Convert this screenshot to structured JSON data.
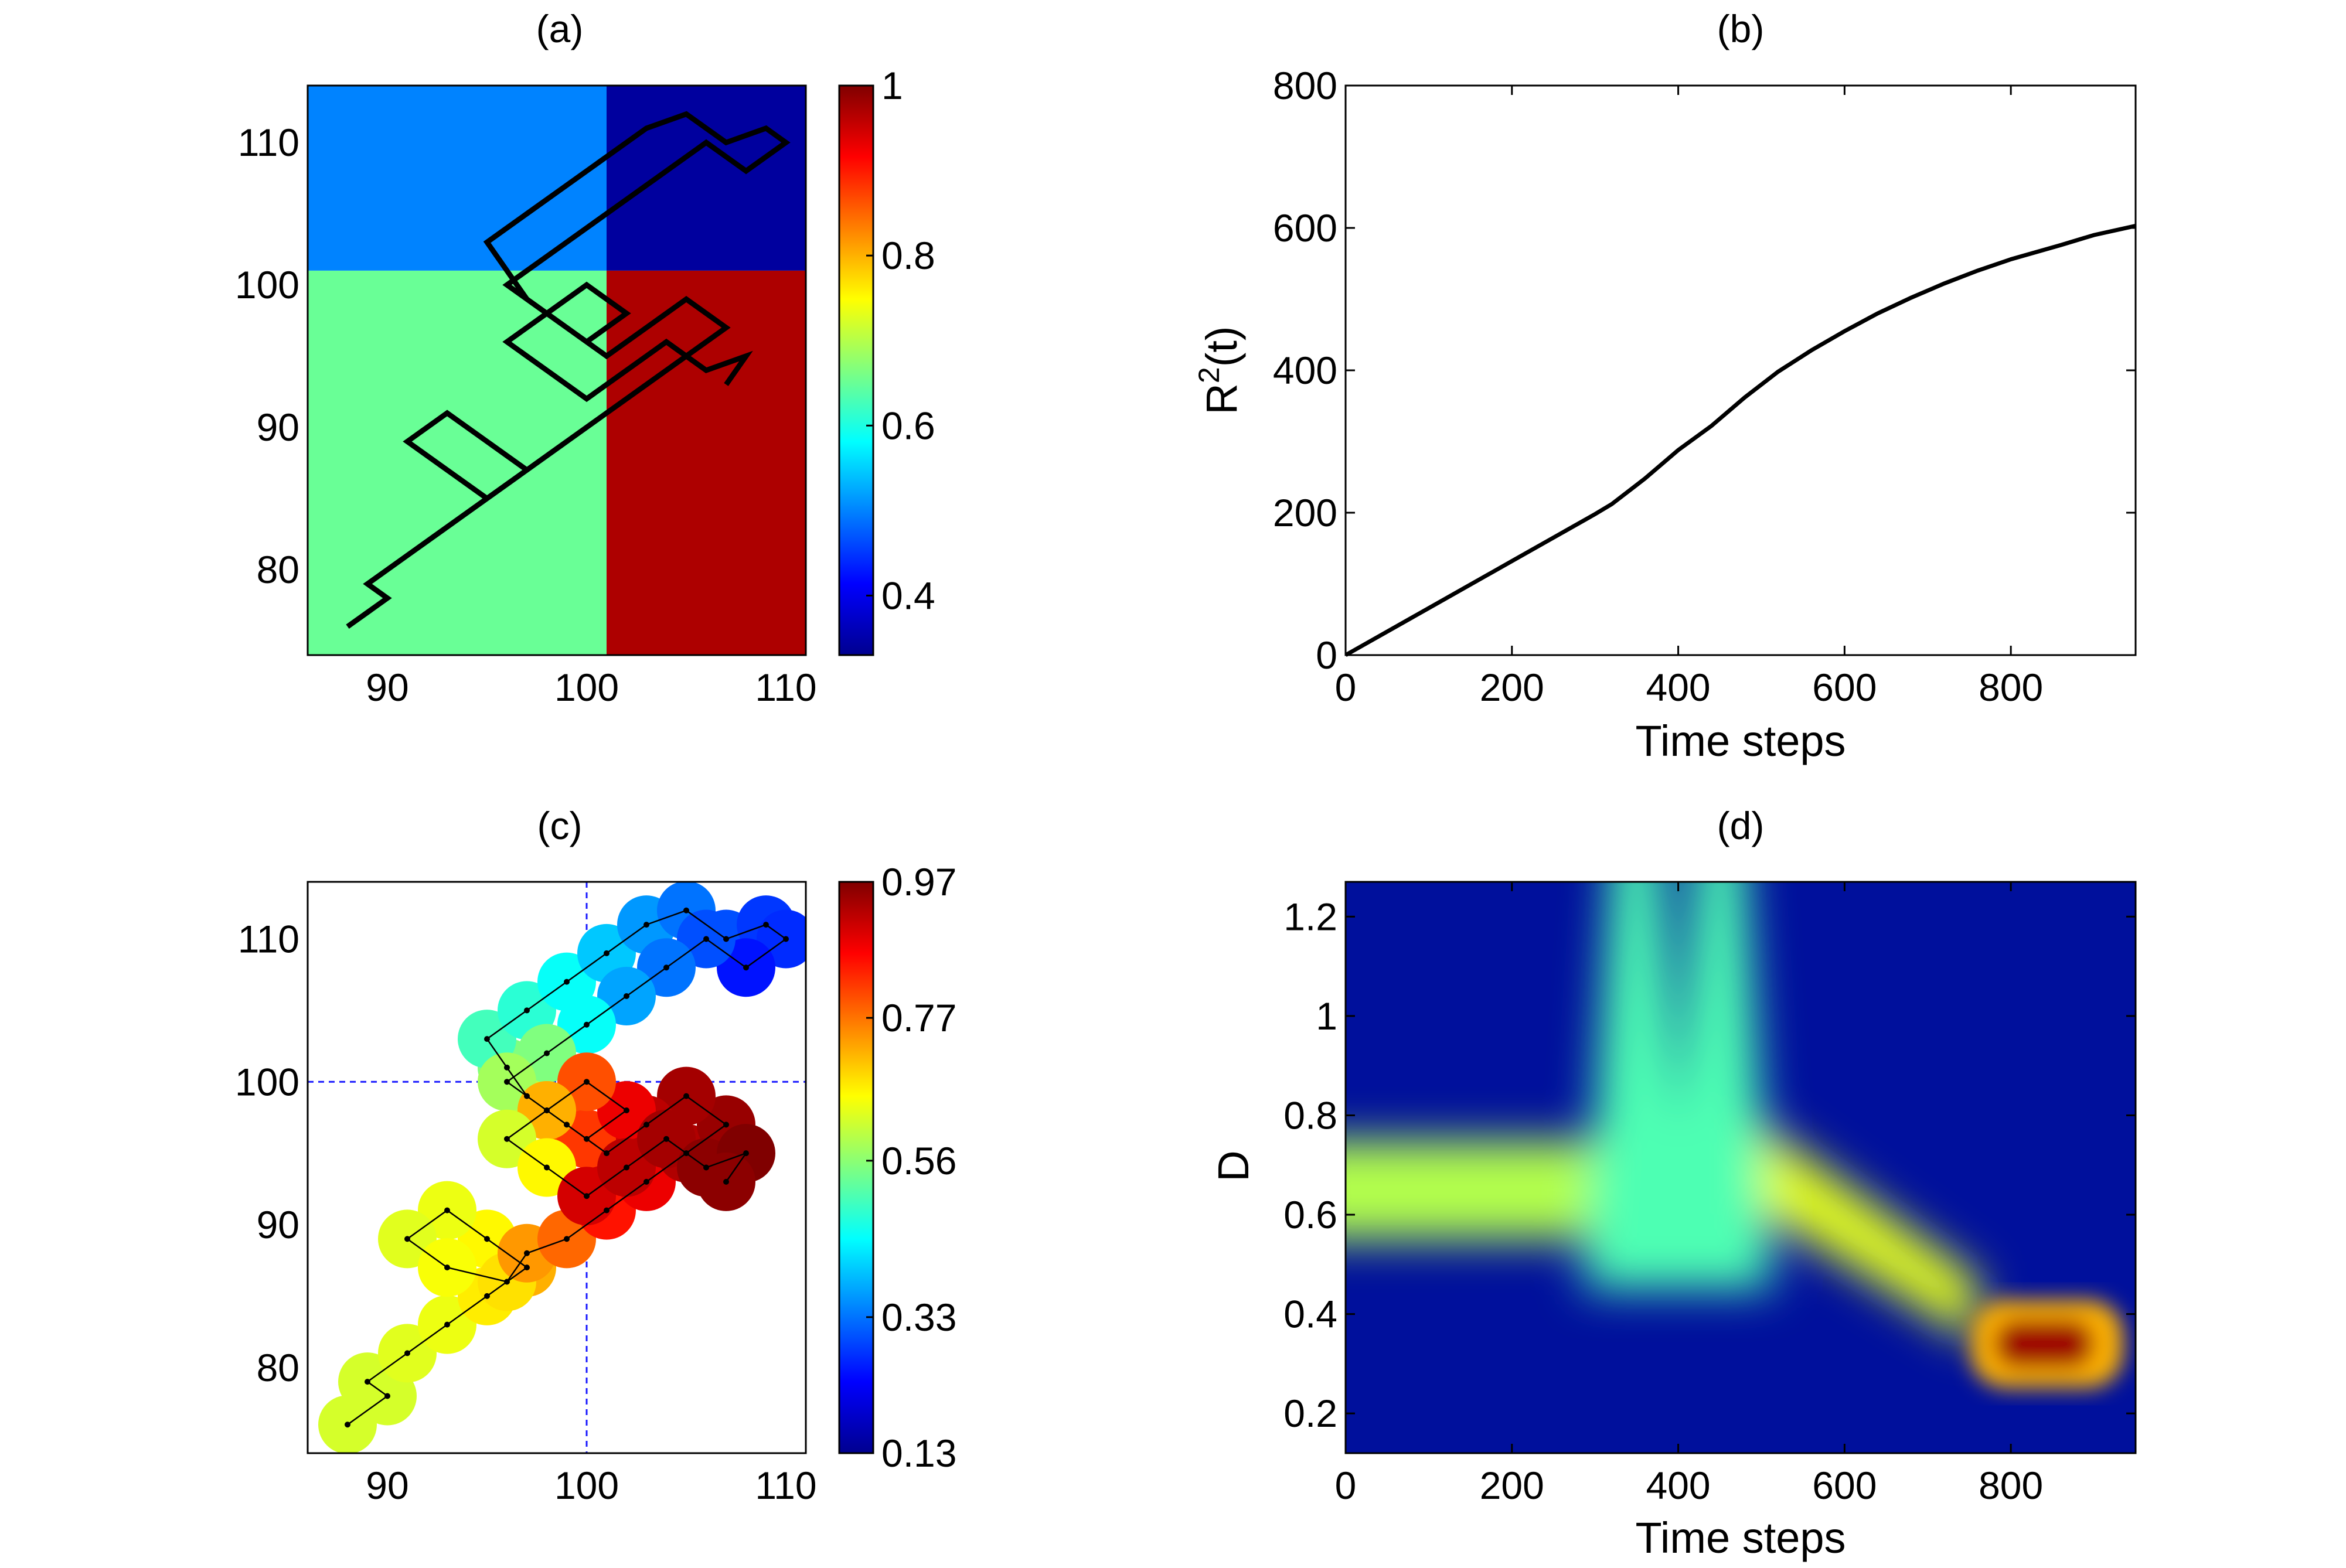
{
  "chart_data": [
    {
      "type": "heatmap",
      "panel": "(a)",
      "title": "(a)",
      "xlim": [
        86,
        111
      ],
      "ylim": [
        74,
        114
      ],
      "xticks": [
        90,
        100,
        110
      ],
      "yticks": [
        80,
        90,
        100,
        110
      ],
      "regions": [
        {
          "x": [
            86,
            101
          ],
          "y": [
            101,
            114
          ],
          "value": 0.5
        },
        {
          "x": [
            101,
            111
          ],
          "y": [
            101,
            114
          ],
          "value": 0.35
        },
        {
          "x": [
            86,
            101
          ],
          "y": [
            74,
            101
          ],
          "value": 0.65
        },
        {
          "x": [
            101,
            111
          ],
          "y": [
            74,
            101
          ],
          "value": 0.97
        }
      ],
      "path": [
        [
          88,
          76
        ],
        [
          90,
          78
        ],
        [
          89,
          79
        ],
        [
          91,
          81
        ],
        [
          93,
          83
        ],
        [
          95,
          85
        ],
        [
          97,
          87
        ],
        [
          95,
          89
        ],
        [
          93,
          91
        ],
        [
          91,
          89
        ],
        [
          93,
          87
        ],
        [
          95,
          85
        ],
        [
          97,
          87
        ],
        [
          99,
          89
        ],
        [
          101,
          91
        ],
        [
          103,
          93
        ],
        [
          105,
          95
        ],
        [
          107,
          97
        ],
        [
          105,
          99
        ],
        [
          103,
          97
        ],
        [
          101,
          95
        ],
        [
          99,
          97
        ],
        [
          97,
          99
        ],
        [
          96,
          101
        ],
        [
          95,
          103
        ],
        [
          97,
          105
        ],
        [
          99,
          107
        ],
        [
          101,
          109
        ],
        [
          103,
          111
        ],
        [
          105,
          112
        ],
        [
          107,
          110
        ],
        [
          109,
          111
        ],
        [
          110,
          110
        ],
        [
          108,
          108
        ],
        [
          106,
          110
        ],
        [
          104,
          108
        ],
        [
          102,
          106
        ],
        [
          100,
          104
        ],
        [
          98,
          102
        ],
        [
          96,
          100
        ],
        [
          98,
          98
        ],
        [
          100,
          96
        ],
        [
          102,
          98
        ],
        [
          100,
          100
        ],
        [
          98,
          98
        ],
        [
          96,
          96
        ],
        [
          98,
          94
        ],
        [
          100,
          92
        ],
        [
          102,
          94
        ],
        [
          104,
          96
        ],
        [
          106,
          94
        ],
        [
          108,
          95
        ],
        [
          107,
          93
        ]
      ],
      "colorbar": {
        "min": 0.33,
        "max": 1,
        "ticks": [
          0.4,
          0.6,
          0.8,
          1
        ]
      }
    },
    {
      "type": "line",
      "panel": "(b)",
      "title": "(b)",
      "xlabel": "Time steps",
      "ylabel": "R²(t)",
      "ylabel_base": "R",
      "ylabel_sup": "2",
      "ylabel_tail": "(t)",
      "xlim": [
        0,
        950
      ],
      "ylim": [
        0,
        800
      ],
      "xticks": [
        0,
        200,
        400,
        600,
        800
      ],
      "yticks": [
        0,
        200,
        400,
        600,
        800
      ],
      "series": [
        {
          "name": "R2",
          "x": [
            0,
            100,
            200,
            300,
            320,
            360,
            400,
            440,
            480,
            520,
            560,
            600,
            640,
            680,
            720,
            760,
            800,
            860,
            900,
            950
          ],
          "y": [
            0,
            66,
            132,
            198,
            212,
            248,
            288,
            322,
            362,
            398,
            428,
            455,
            480,
            502,
            522,
            540,
            556,
            576,
            590,
            603
          ]
        }
      ]
    },
    {
      "type": "scatter",
      "panel": "(c)",
      "title": "(c)",
      "xlim": [
        86,
        111
      ],
      "ylim": [
        74,
        114
      ],
      "xticks": [
        90,
        100,
        110
      ],
      "yticks": [
        80,
        90,
        100,
        110
      ],
      "crosshair": {
        "x": 100,
        "y": 100
      },
      "colorbar": {
        "min": 0.13,
        "max": 0.97,
        "ticks": [
          0.13,
          0.33,
          0.56,
          0.77,
          0.97
        ]
      },
      "points": [
        [
          88,
          76,
          0.62
        ],
        [
          90,
          78,
          0.62
        ],
        [
          89,
          79,
          0.62
        ],
        [
          91,
          81,
          0.63
        ],
        [
          93,
          83,
          0.64
        ],
        [
          95,
          85,
          0.67
        ],
        [
          97,
          87,
          0.72
        ],
        [
          95,
          89,
          0.66
        ],
        [
          93,
          91,
          0.64
        ],
        [
          91,
          89,
          0.63
        ],
        [
          93,
          87,
          0.65
        ],
        [
          96,
          86,
          0.68
        ],
        [
          97,
          88,
          0.74
        ],
        [
          99,
          89,
          0.78
        ],
        [
          101,
          91,
          0.85
        ],
        [
          103,
          93,
          0.88
        ],
        [
          105,
          95,
          0.93
        ],
        [
          107,
          97,
          0.95
        ],
        [
          105,
          99,
          0.94
        ],
        [
          103,
          97,
          0.92
        ],
        [
          101,
          95,
          0.9
        ],
        [
          99,
          97,
          0.8
        ],
        [
          97,
          99,
          0.6
        ],
        [
          96,
          101,
          0.55
        ],
        [
          95,
          103,
          0.5
        ],
        [
          97,
          105,
          0.48
        ],
        [
          99,
          107,
          0.45
        ],
        [
          101,
          109,
          0.4
        ],
        [
          103,
          111,
          0.36
        ],
        [
          105,
          112,
          0.33
        ],
        [
          107,
          110,
          0.3
        ],
        [
          109,
          111,
          0.28
        ],
        [
          110,
          110,
          0.27
        ],
        [
          108,
          108,
          0.25
        ],
        [
          106,
          110,
          0.3
        ],
        [
          104,
          108,
          0.33
        ],
        [
          102,
          106,
          0.37
        ],
        [
          100,
          104,
          0.45
        ],
        [
          98,
          102,
          0.55
        ],
        [
          96,
          100,
          0.58
        ],
        [
          98,
          98,
          0.7
        ],
        [
          100,
          96,
          0.82
        ],
        [
          102,
          98,
          0.88
        ],
        [
          100,
          100,
          0.8
        ],
        [
          98,
          98,
          0.72
        ],
        [
          96,
          96,
          0.62
        ],
        [
          98,
          94,
          0.66
        ],
        [
          100,
          92,
          0.9
        ],
        [
          102,
          94,
          0.92
        ],
        [
          104,
          96,
          0.94
        ],
        [
          106,
          94,
          0.96
        ],
        [
          108,
          95,
          0.97
        ],
        [
          107,
          93,
          0.96
        ]
      ]
    },
    {
      "type": "heatmap",
      "panel": "(d)",
      "title": "(d)",
      "xlabel": "Time steps",
      "ylabel": "D",
      "xlim": [
        0,
        950
      ],
      "ylim": [
        0.12,
        1.27
      ],
      "xticks": [
        0,
        200,
        400,
        600,
        800
      ],
      "yticks": [
        0.2,
        0.4,
        0.6,
        0.8,
        1,
        1.2
      ],
      "features": [
        {
          "kind": "band",
          "x": [
            0,
            300
          ],
          "y": 0.65,
          "value": 0.55
        },
        {
          "kind": "plume",
          "x": 350,
          "y": 1.2,
          "value": 0.45
        },
        {
          "kind": "plume",
          "x": 450,
          "y": 1.2,
          "value": 0.45
        },
        {
          "kind": "ridge",
          "x": [
            500,
            760
          ],
          "y": [
            0.7,
            0.4
          ],
          "value": 0.6
        },
        {
          "kind": "peak",
          "x": [
            780,
            900
          ],
          "y": 0.34,
          "value": 0.97
        }
      ]
    }
  ]
}
